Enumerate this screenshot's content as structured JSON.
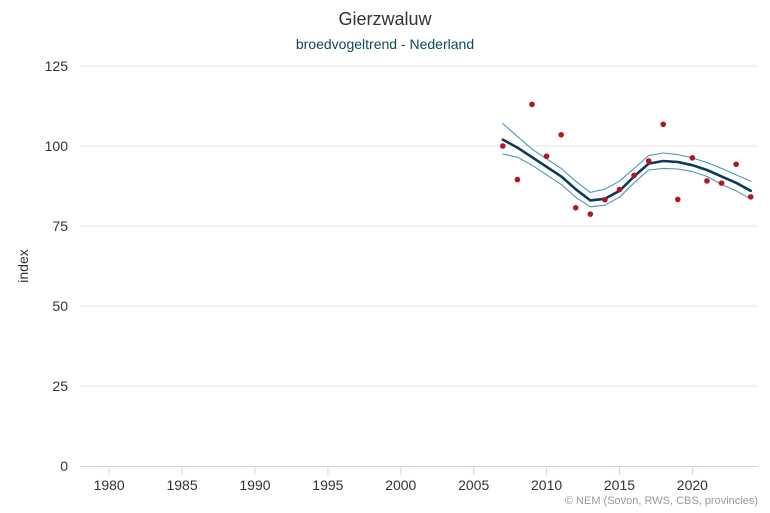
{
  "chart_data": {
    "type": "line",
    "title": "Gierzwaluw",
    "subtitle": "broedvogeltrend - Nederland",
    "ylabel": "index",
    "xlabel": "",
    "xlim": [
      1978,
      2024.5
    ],
    "ylim": [
      0,
      125
    ],
    "x_ticks": [
      1980,
      1985,
      1990,
      1995,
      2000,
      2005,
      2010,
      2015,
      2020
    ],
    "y_ticks": [
      0,
      25,
      50,
      75,
      100,
      125
    ],
    "grid": true,
    "legend": "none",
    "credits": "© NEM (Sovon, RWS, CBS, provincies)",
    "x": [
      2007,
      2008,
      2009,
      2010,
      2011,
      2012,
      2013,
      2014,
      2015,
      2016,
      2017,
      2018,
      2019,
      2020,
      2021,
      2022,
      2023,
      2024
    ],
    "series": [
      {
        "role": "trend",
        "values": [
          102,
          99.5,
          96.5,
          93.5,
          90.5,
          86.5,
          83,
          83.5,
          86,
          90.5,
          94.5,
          95.3,
          95,
          94,
          92.5,
          90.5,
          88.5,
          86
        ],
        "color": "#0b3a5c"
      },
      {
        "role": "upper-bound",
        "values": [
          107,
          103,
          99,
          96,
          93,
          89,
          85.5,
          86.5,
          89,
          93,
          97,
          97.8,
          97.3,
          96.3,
          94.8,
          93,
          91,
          89
        ],
        "color": "#4a96b8"
      },
      {
        "role": "lower-bound",
        "values": [
          97.5,
          96.5,
          94,
          91,
          88,
          84,
          81,
          81.5,
          84,
          88.5,
          92.5,
          93,
          92.8,
          92,
          90.5,
          88,
          86,
          83.5
        ],
        "color": "#4a96b8"
      },
      {
        "role": "index-points",
        "values": [
          100,
          89.5,
          113,
          96.8,
          103.5,
          80.7,
          78.7,
          83.2,
          86.4,
          90.8,
          95.3,
          106.8,
          83.3,
          96.3,
          89.1,
          88.4,
          94.3,
          84.1
        ],
        "color": "#b3161f"
      }
    ]
  }
}
